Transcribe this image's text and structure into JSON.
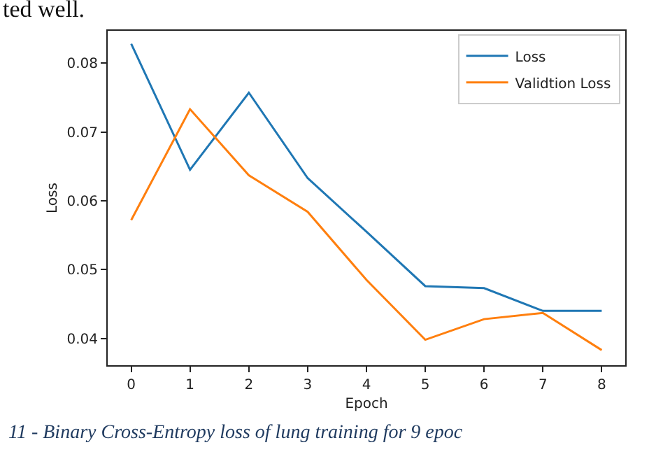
{
  "chart_data": {
    "type": "line",
    "xlabel": "Epoch",
    "ylabel": "Loss",
    "x": [
      0,
      1,
      2,
      3,
      4,
      5,
      6,
      7,
      8
    ],
    "series": [
      {
        "name": "Loss",
        "color": "#1f77b4",
        "values": [
          0.0828,
          0.0645,
          0.0757,
          0.0633,
          0.0555,
          0.0476,
          0.0473,
          0.044,
          0.044
        ]
      },
      {
        "name": "Validtion Loss",
        "color": "#ff7f0e",
        "values": [
          0.0572,
          0.0733,
          0.0637,
          0.0584,
          0.0485,
          0.0398,
          0.0428,
          0.0437,
          0.0383
        ]
      }
    ],
    "xlim": [
      -0.4,
      8.4
    ],
    "xticks": [
      0,
      1,
      2,
      3,
      4,
      5,
      6,
      7,
      8
    ],
    "ylim": [
      0.0361,
      0.0847
    ],
    "yticks": [
      {
        "value": 0.04,
        "label": "0.04"
      },
      {
        "value": 0.05,
        "label": "0.05"
      },
      {
        "value": 0.06,
        "label": "0.06"
      },
      {
        "value": 0.07,
        "label": "0.07"
      },
      {
        "value": 0.08,
        "label": "0.08"
      }
    ],
    "legend": "top right",
    "marker": "none",
    "line_style": "solid",
    "annotations": [
      "ted well.",
      "11 - Binary Cross-Entropy loss of lung training for 9 epoc"
    ]
  }
}
